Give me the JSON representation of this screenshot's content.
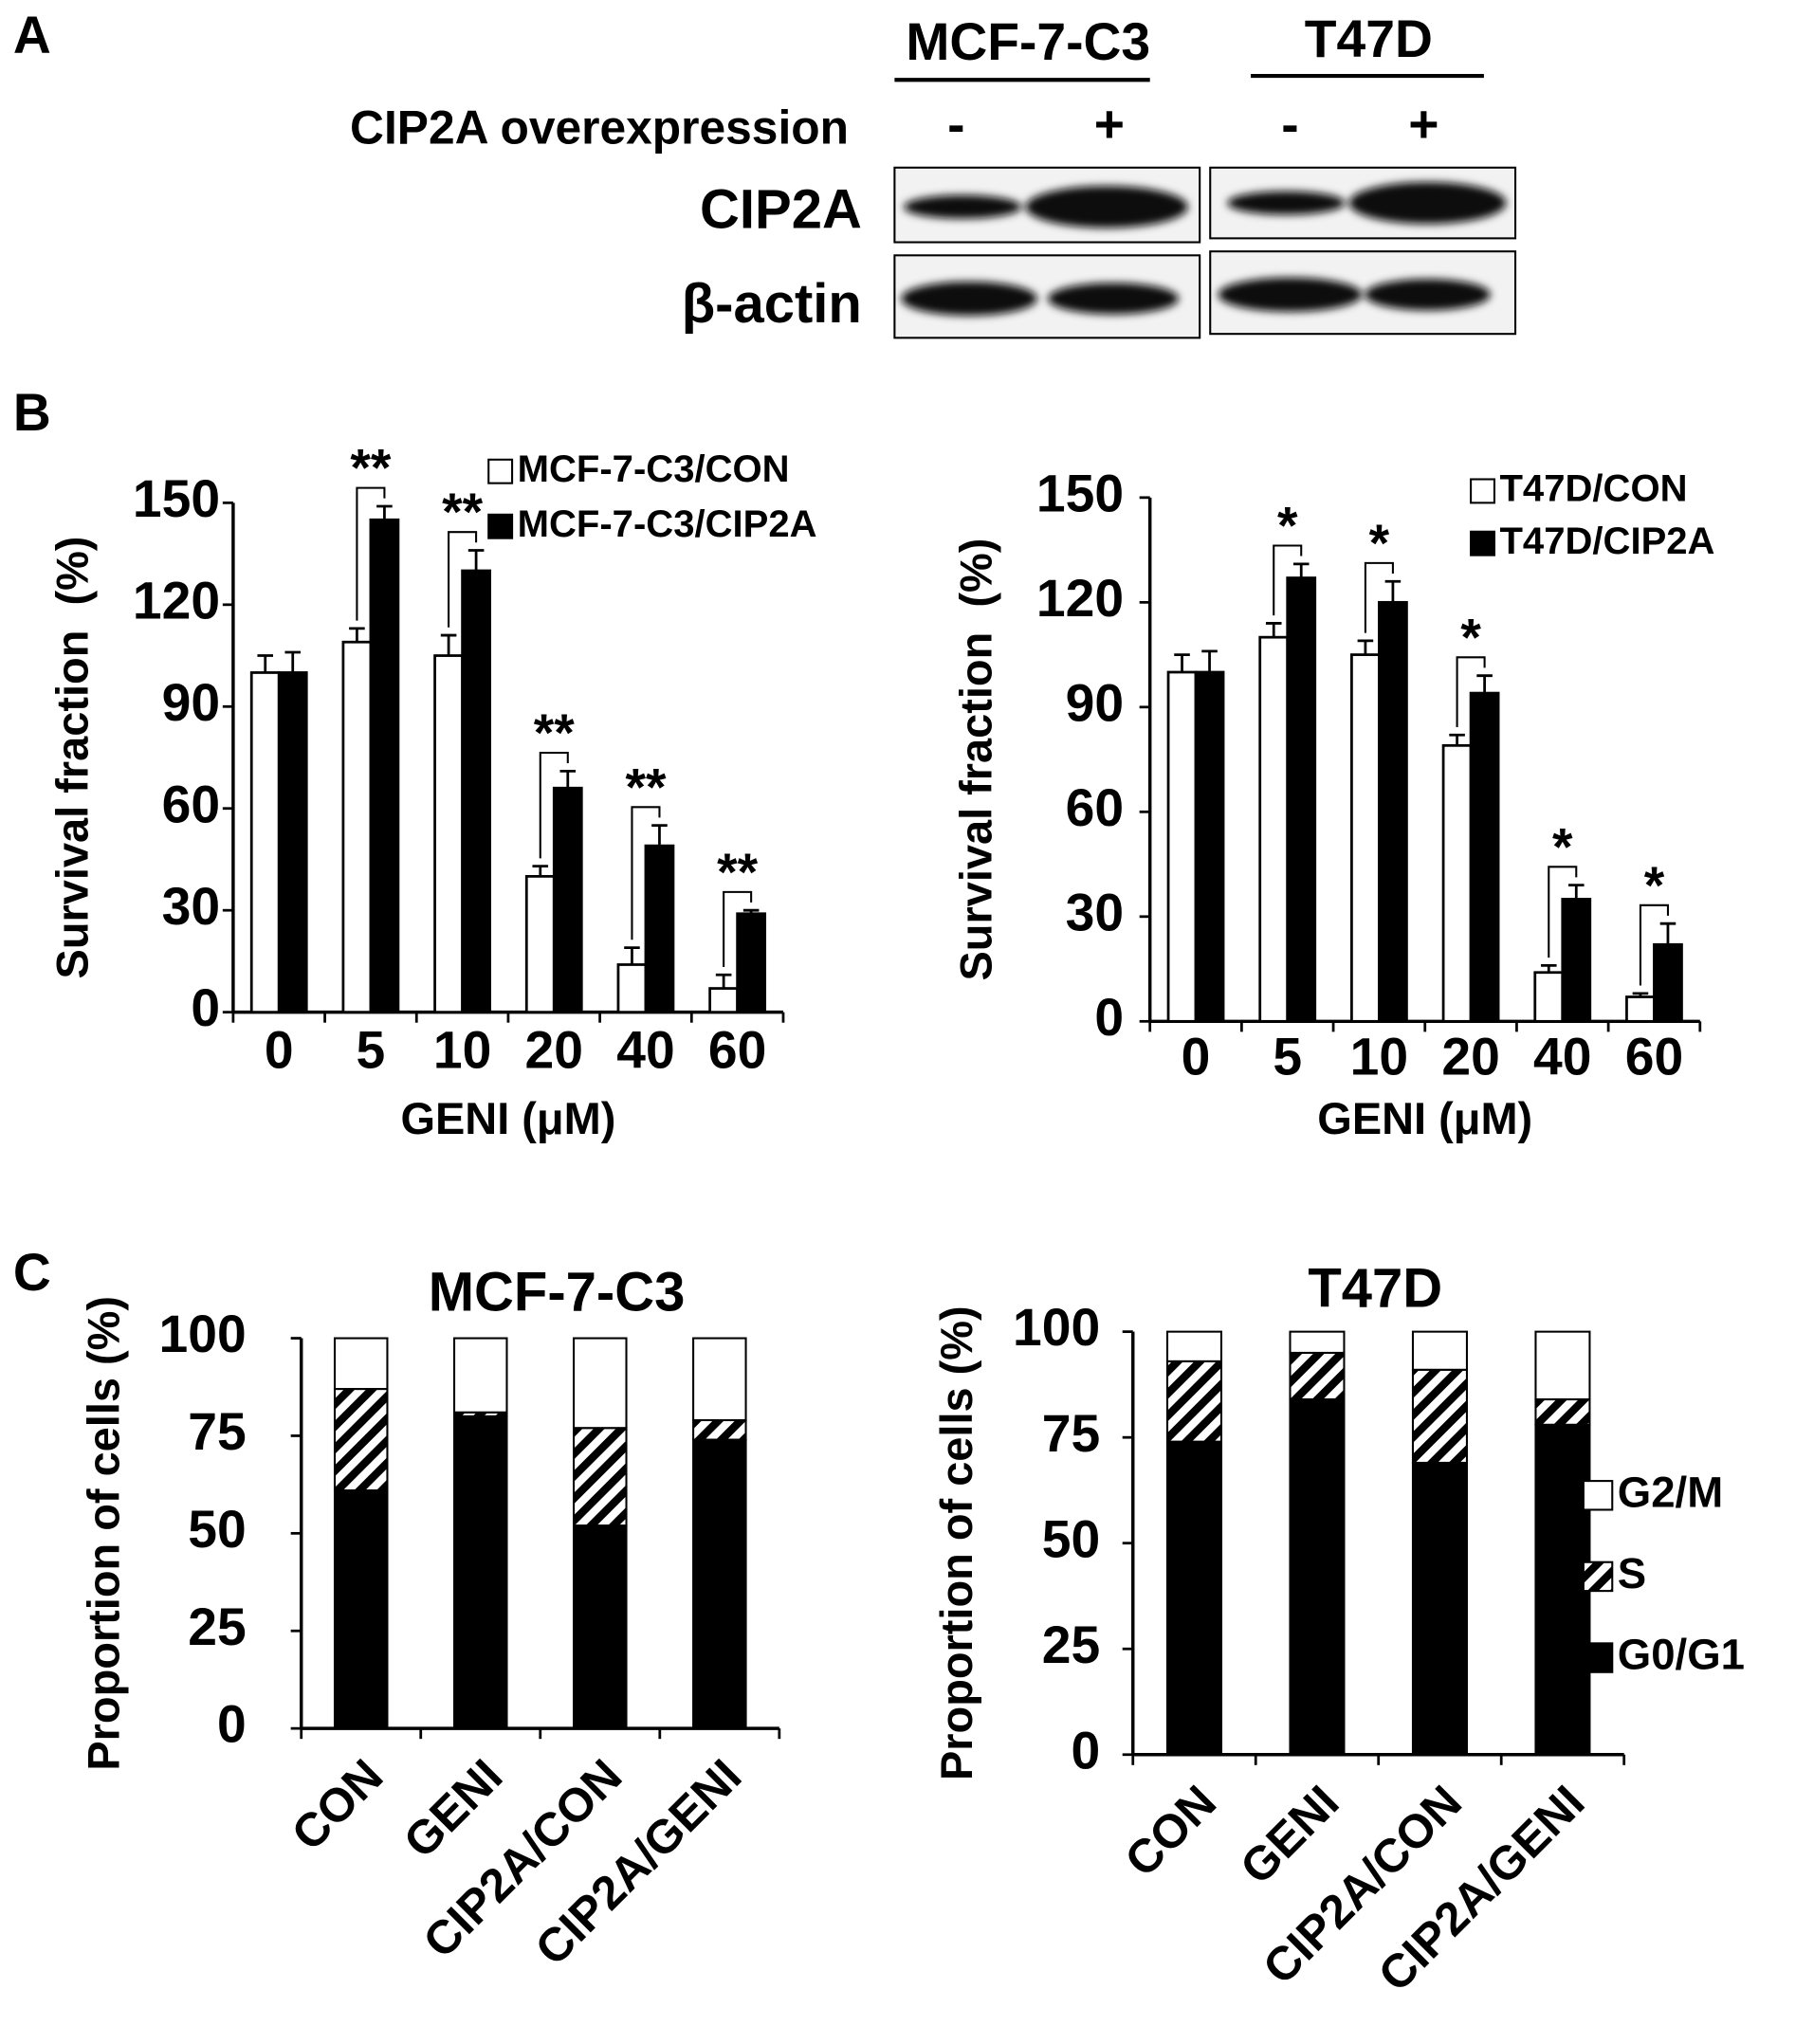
{
  "panel_labels": [
    "A",
    "B",
    "C"
  ],
  "blot": {
    "cell_lines": [
      "MCF-7-C3",
      "T47D"
    ],
    "row_label": "CIP2A overexpression",
    "lanes": [
      "-",
      "+",
      "-",
      "+"
    ],
    "proteins": [
      "CIP2A",
      "β-actin"
    ]
  },
  "chart_data": [
    {
      "type": "bar",
      "xlabel": "GENI (μM)",
      "ylabel": "Survival fraction  (%)",
      "categories": [
        "0",
        "5",
        "10",
        "20",
        "40",
        "60"
      ],
      "series": [
        {
          "name": "MCF-7-C3/CON",
          "color": "#ffffff",
          "values": [
            100,
            109,
            105,
            40,
            14,
            7
          ],
          "errors": [
            5,
            4,
            6,
            3,
            5,
            4
          ]
        },
        {
          "name": "MCF-7-C3/CIP2A",
          "color": "#000000",
          "values": [
            100,
            145,
            130,
            66,
            49,
            29
          ],
          "errors": [
            6,
            4,
            6,
            5,
            6,
            1
          ]
        }
      ],
      "significance": [
        null,
        "**",
        "**",
        "**",
        "**",
        "**"
      ],
      "ylim": [
        0,
        150
      ],
      "yticks": [
        0,
        30,
        60,
        90,
        120,
        150
      ]
    },
    {
      "type": "bar",
      "xlabel": "GENI (μM)",
      "ylabel": "Survival fraction  (%)",
      "categories": [
        "0",
        "5",
        "10",
        "20",
        "40",
        "60"
      ],
      "series": [
        {
          "name": "T47D/CON",
          "color": "#ffffff",
          "values": [
            100,
            110,
            105,
            79,
            14,
            7
          ],
          "errors": [
            5,
            4,
            4,
            3,
            2,
            1
          ]
        },
        {
          "name": "T47D/CIP2A",
          "color": "#000000",
          "values": [
            100,
            127,
            120,
            94,
            35,
            22
          ],
          "errors": [
            6,
            4,
            6,
            5,
            4,
            6
          ]
        }
      ],
      "significance": [
        null,
        "*",
        "*",
        "*",
        "*",
        "*"
      ],
      "ylim": [
        0,
        150
      ],
      "yticks": [
        0,
        30,
        60,
        90,
        120,
        150
      ]
    },
    {
      "type": "stacked_bar",
      "title": "MCF-7-C3",
      "ylabel": "Proportion of cells (%)",
      "categories": [
        "CON",
        "GENI",
        "CIP2A/CON",
        "CIP2A/GENI"
      ],
      "series": [
        {
          "color": "#000000",
          "values": [
            61,
            80,
            52,
            74
          ]
        },
        {
          "color": "#000000",
          "pattern": "hatch",
          "values": [
            26,
            1,
            25,
            5
          ]
        },
        {
          "color": "#ffffff",
          "values": [
            13,
            19,
            23,
            21
          ]
        }
      ],
      "ylim": [
        0,
        100
      ],
      "yticks": [
        0,
        25,
        50,
        75,
        100
      ]
    },
    {
      "type": "stacked_bar",
      "title": "T47D",
      "ylabel": "Proportion of cells (%)",
      "categories": [
        "CON",
        "GENI",
        "CIP2A/CON",
        "CIP2A/GENI"
      ],
      "series": [
        {
          "name": "G0/G1",
          "color": "#000000",
          "values": [
            74,
            84,
            69,
            78
          ]
        },
        {
          "name": "S",
          "color": "#000000",
          "pattern": "hatch",
          "values": [
            19,
            11,
            22,
            6
          ]
        },
        {
          "name": "G2/M",
          "color": "#ffffff",
          "values": [
            7,
            5,
            9,
            16
          ]
        }
      ],
      "ylim": [
        0,
        100
      ],
      "yticks": [
        0,
        25,
        50,
        75,
        100
      ]
    }
  ]
}
